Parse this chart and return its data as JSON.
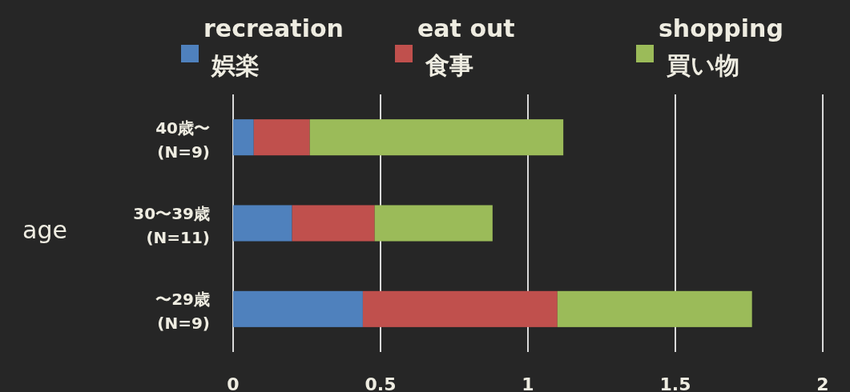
{
  "chart_data": {
    "type": "bar",
    "orientation": "horizontal",
    "stacked": true,
    "categories": [
      "40歳〜 (N=9)",
      "30〜39歳 (N=11)",
      "〜29歳 (N=9)"
    ],
    "series": [
      {
        "name": "recreation 娯楽",
        "color": "#4f81bd",
        "values": [
          0.07,
          0.2,
          0.44
        ]
      },
      {
        "name": "eat out 食事",
        "color": "#c0504d",
        "values": [
          0.19,
          0.28,
          0.66
        ]
      },
      {
        "name": "shopping 買い物",
        "color": "#9bbb59",
        "values": [
          0.86,
          0.4,
          0.66
        ]
      }
    ],
    "ylabel": "age",
    "xlim": [
      0,
      2
    ],
    "xticks": [
      0,
      0.5,
      1,
      1.5,
      2
    ],
    "grid": "x",
    "legend": "top"
  }
}
